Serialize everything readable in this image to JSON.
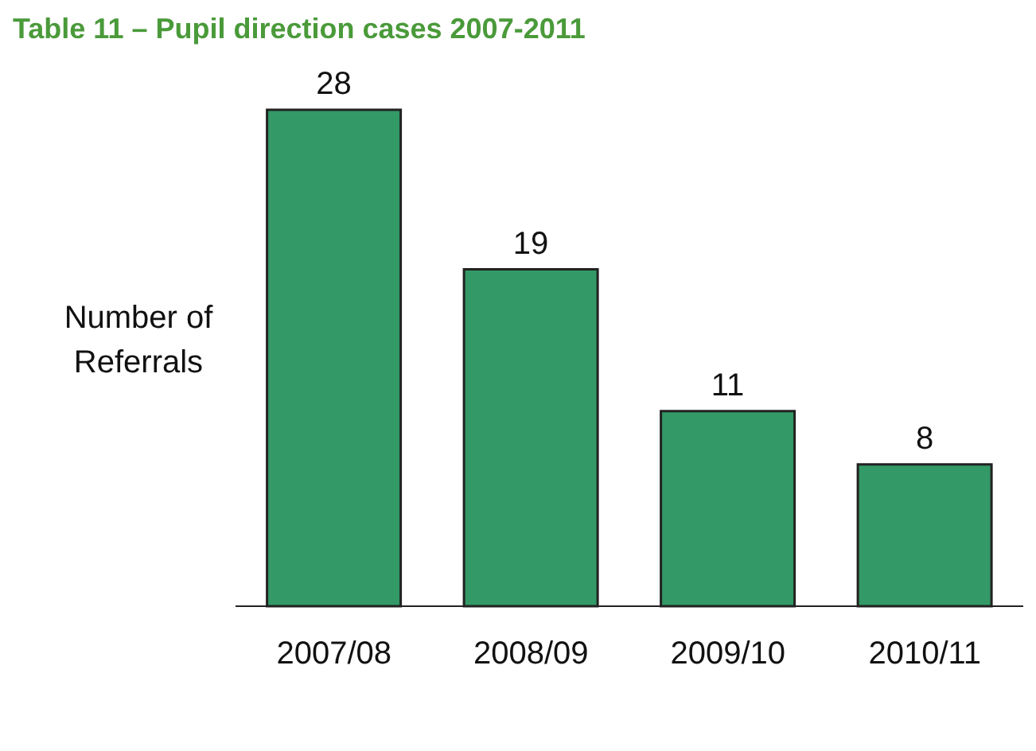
{
  "chart_data": {
    "type": "bar",
    "title": "Table 11 – Pupil direction cases 2007-2011",
    "ylabel": "Number of Referrals",
    "categories": [
      "2007/08",
      "2008/09",
      "2009/10",
      "2010/11"
    ],
    "values": [
      28,
      19,
      11,
      8
    ],
    "color": "#339966",
    "data_labels": true
  }
}
